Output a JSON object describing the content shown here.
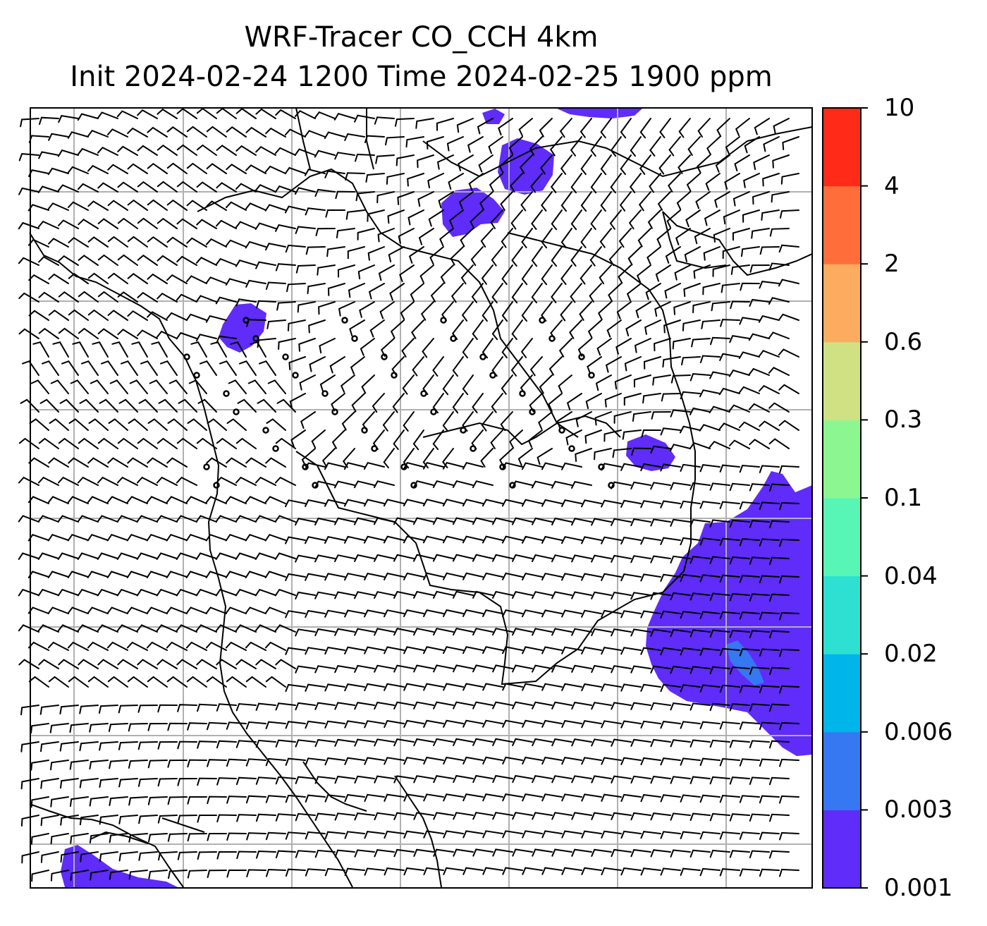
{
  "title": {
    "line1": "WRF-Tracer CO_CCH 4km",
    "line2": "Init 2024-02-24 1200 Time 2024-02-25 1900 ppm"
  },
  "colorbar": {
    "levels": [
      "0.001",
      "0.003",
      "0.006",
      "0.02",
      "0.04",
      "0.1",
      "0.3",
      "0.6",
      "2",
      "4",
      "10"
    ],
    "colors": [
      "#5f2cfa",
      "#3677f2",
      "#00b5ea",
      "#2de0d2",
      "#58f6b6",
      "#8cf790",
      "#d0e184",
      "#fcac5e",
      "#ff6e3a",
      "#ff2a18"
    ]
  },
  "map": {
    "field": "CO_CCH tracer concentration",
    "units": "ppm",
    "overlay": "wind barbs",
    "gridlines": true,
    "plume_color": "#5f2cfa",
    "plume_core_color": "#3677f2"
  }
}
